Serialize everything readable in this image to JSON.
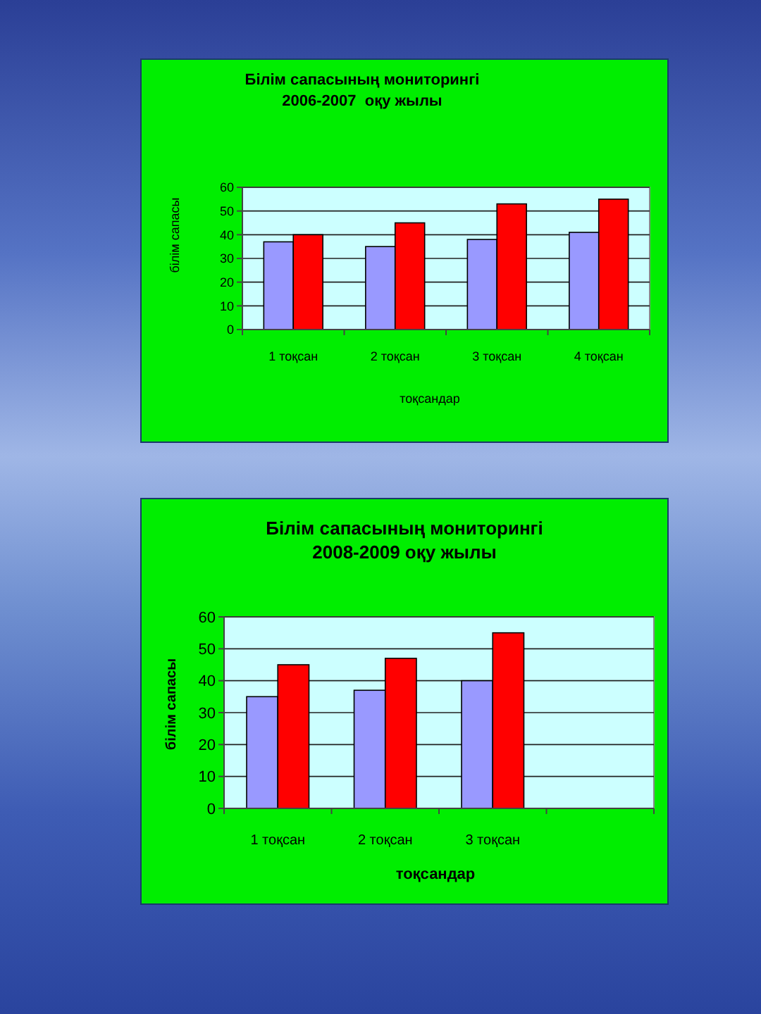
{
  "chart_data": [
    {
      "type": "bar",
      "title": "Білім сапасының мониторингі\n2006-2007  оқу жылы",
      "xlabel": "тоқсандар",
      "ylabel": "білім сапасы",
      "categories": [
        "1 тоқсан",
        "2 тоқсан",
        "3 тоқсан",
        "4 тоқсан"
      ],
      "series": [
        {
          "color": "#9999ff",
          "values": [
            37,
            35,
            38,
            41
          ]
        },
        {
          "color": "#ff0000",
          "values": [
            40,
            45,
            53,
            55
          ]
        }
      ],
      "ylim": [
        0,
        60
      ],
      "yticks": [
        0,
        10,
        20,
        30,
        40,
        50,
        60
      ],
      "grid": "y"
    },
    {
      "type": "bar",
      "title": "Білім сапасының мониторингі\n2008-2009 оқу жылы",
      "xlabel": "тоқсандар",
      "ylabel": "білім сапасы",
      "categories": [
        "1 тоқсан",
        "2 тоқсан",
        "3 тоқсан",
        null
      ],
      "series": [
        {
          "color": "#9999ff",
          "values": [
            35,
            37,
            40,
            null
          ]
        },
        {
          "color": "#ff0000",
          "values": [
            45,
            47,
            55,
            null
          ]
        }
      ],
      "ylim": [
        0,
        60
      ],
      "yticks": [
        0,
        10,
        20,
        30,
        40,
        50,
        60
      ],
      "grid": "y"
    }
  ]
}
